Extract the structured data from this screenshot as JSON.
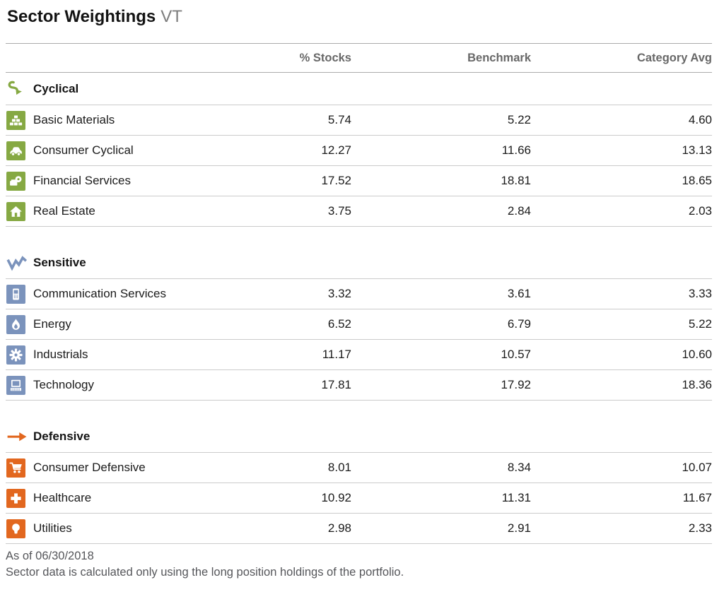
{
  "header": {
    "title": "Sector Weightings",
    "ticker": "VT"
  },
  "table": {
    "columns": [
      "% Stocks",
      "Benchmark",
      "Category Avg"
    ],
    "groups": [
      {
        "label": "Cyclical",
        "icon": "cyclical-icon",
        "color": "#86a943",
        "rows": [
          {
            "label": "Basic Materials",
            "icon": "basic-materials-icon",
            "stocks": "5.74",
            "benchmark": "5.22",
            "category_avg": "4.60"
          },
          {
            "label": "Consumer Cyclical",
            "icon": "consumer-cyclical-icon",
            "stocks": "12.27",
            "benchmark": "11.66",
            "category_avg": "13.13"
          },
          {
            "label": "Financial Services",
            "icon": "financial-services-icon",
            "stocks": "17.52",
            "benchmark": "18.81",
            "category_avg": "18.65"
          },
          {
            "label": "Real Estate",
            "icon": "real-estate-icon",
            "stocks": "3.75",
            "benchmark": "2.84",
            "category_avg": "2.03"
          }
        ]
      },
      {
        "label": "Sensitive",
        "icon": "sensitive-icon",
        "color": "#7b93bc",
        "rows": [
          {
            "label": "Communication Services",
            "icon": "communication-services-icon",
            "stocks": "3.32",
            "benchmark": "3.61",
            "category_avg": "3.33"
          },
          {
            "label": "Energy",
            "icon": "energy-icon",
            "stocks": "6.52",
            "benchmark": "6.79",
            "category_avg": "5.22"
          },
          {
            "label": "Industrials",
            "icon": "industrials-icon",
            "stocks": "11.17",
            "benchmark": "10.57",
            "category_avg": "10.60"
          },
          {
            "label": "Technology",
            "icon": "technology-icon",
            "stocks": "17.81",
            "benchmark": "17.92",
            "category_avg": "18.36"
          }
        ]
      },
      {
        "label": "Defensive",
        "icon": "defensive-icon",
        "color": "#e2671f",
        "rows": [
          {
            "label": "Consumer Defensive",
            "icon": "consumer-defensive-icon",
            "stocks": "8.01",
            "benchmark": "8.34",
            "category_avg": "10.07"
          },
          {
            "label": "Healthcare",
            "icon": "healthcare-icon",
            "stocks": "10.92",
            "benchmark": "11.31",
            "category_avg": "11.67"
          },
          {
            "label": "Utilities",
            "icon": "utilities-icon",
            "stocks": "2.98",
            "benchmark": "2.91",
            "category_avg": "2.33"
          }
        ]
      }
    ]
  },
  "footer": {
    "as_of": "As of 06/30/2018",
    "note": "Sector data is calculated only using the long position holdings of the portfolio."
  }
}
